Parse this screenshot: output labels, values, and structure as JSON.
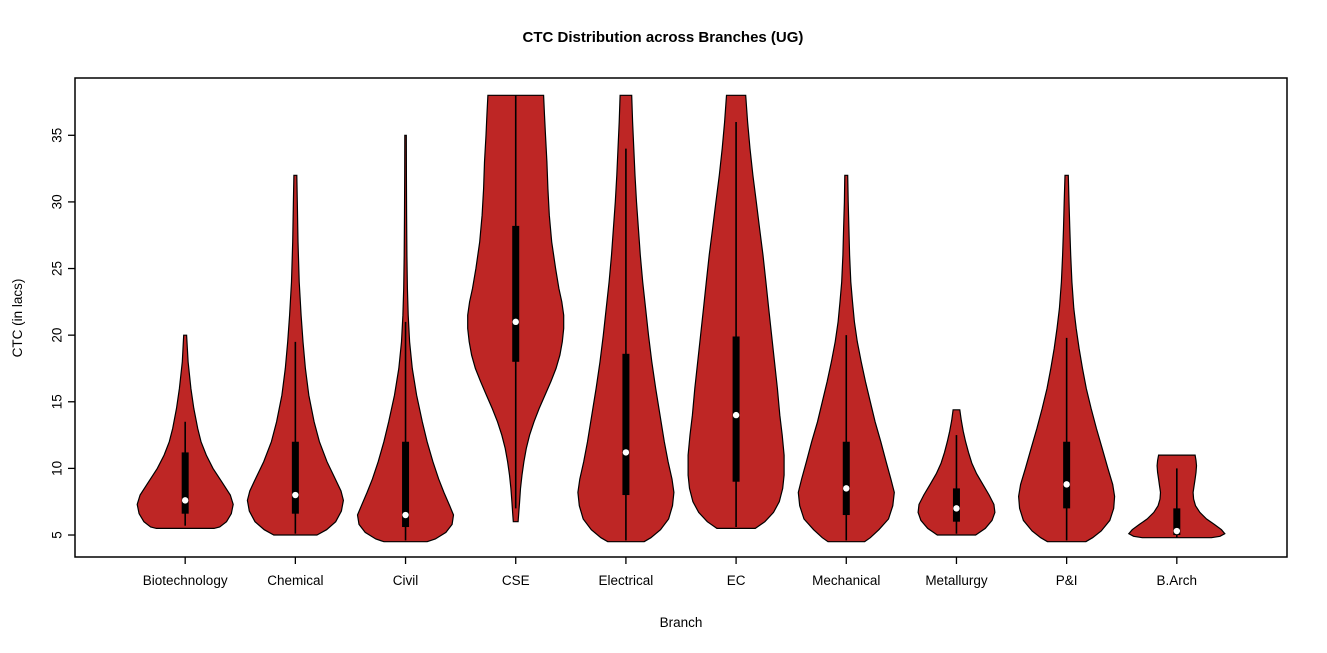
{
  "chart_data": {
    "type": "violin",
    "title": "CTC Distribution across Branches (UG)",
    "xlabel": "Branch",
    "ylabel": "CTC (in lacs)",
    "ylim": [
      3.35,
      39.3
    ],
    "yticks": [
      5,
      10,
      15,
      20,
      25,
      30,
      35
    ],
    "grid": false,
    "legend_position": "none",
    "fill_color": "#BE2625",
    "outline_color": "#000000",
    "box_color": "#000000",
    "median_dot_color": "#FFFFFF",
    "categories": [
      "Biotechnology",
      "Chemical",
      "Civil",
      "CSE",
      "Electrical",
      "EC",
      "Mechanical",
      "Metallurgy",
      "P&I",
      "B.Arch"
    ],
    "violins": [
      {
        "branch": "Biotechnology",
        "min": 5.5,
        "max": 20,
        "q1": 6.6,
        "median": 7.6,
        "q3": 11.2,
        "whisker_low": 5.7,
        "whisker_high": 13.5,
        "profile": [
          [
            20,
            0.03
          ],
          [
            18,
            0.06
          ],
          [
            16,
            0.12
          ],
          [
            14.5,
            0.18
          ],
          [
            13,
            0.26
          ],
          [
            12,
            0.33
          ],
          [
            11,
            0.44
          ],
          [
            10,
            0.58
          ],
          [
            9,
            0.76
          ],
          [
            8,
            0.94
          ],
          [
            7.3,
            1.0
          ],
          [
            6.6,
            0.96
          ],
          [
            6.0,
            0.86
          ],
          [
            5.6,
            0.72
          ],
          [
            5.5,
            0.6
          ]
        ]
      },
      {
        "branch": "Chemical",
        "min": 5.0,
        "max": 32,
        "q1": 6.6,
        "median": 8.0,
        "q3": 12.0,
        "whisker_low": 5.1,
        "whisker_high": 19.5,
        "profile": [
          [
            32,
            0.03
          ],
          [
            30,
            0.04
          ],
          [
            27,
            0.055
          ],
          [
            24,
            0.08
          ],
          [
            21.5,
            0.12
          ],
          [
            19.5,
            0.16
          ],
          [
            17.5,
            0.21
          ],
          [
            15.5,
            0.28
          ],
          [
            13.5,
            0.39
          ],
          [
            12,
            0.5
          ],
          [
            10.5,
            0.66
          ],
          [
            9.3,
            0.82
          ],
          [
            8.3,
            0.95
          ],
          [
            7.6,
            1.0
          ],
          [
            6.8,
            0.96
          ],
          [
            6.0,
            0.84
          ],
          [
            5.4,
            0.65
          ],
          [
            5.0,
            0.45
          ]
        ]
      },
      {
        "branch": "Civil",
        "min": 4.5,
        "max": 35,
        "q1": 5.6,
        "median": 6.5,
        "q3": 12.0,
        "whisker_low": 4.6,
        "whisker_high": 21.0,
        "profile": [
          [
            35,
            0.015
          ],
          [
            32,
            0.018
          ],
          [
            29,
            0.022
          ],
          [
            26,
            0.028
          ],
          [
            23.5,
            0.038
          ],
          [
            21.5,
            0.055
          ],
          [
            19.5,
            0.085
          ],
          [
            17.5,
            0.14
          ],
          [
            15.5,
            0.23
          ],
          [
            13.5,
            0.35
          ],
          [
            12,
            0.45
          ],
          [
            10.5,
            0.57
          ],
          [
            9.2,
            0.69
          ],
          [
            8.2,
            0.8
          ],
          [
            7.2,
            0.92
          ],
          [
            6.5,
            1.0
          ],
          [
            5.8,
            0.97
          ],
          [
            5.2,
            0.84
          ],
          [
            4.7,
            0.62
          ],
          [
            4.5,
            0.45
          ]
        ]
      },
      {
        "branch": "CSE",
        "min": 6.0,
        "max": 38,
        "q1": 18.0,
        "median": 21.0,
        "q3": 28.2,
        "whisker_low": 7.0,
        "whisker_high": 38.0,
        "profile": [
          [
            38,
            0.58
          ],
          [
            36.5,
            0.6
          ],
          [
            35,
            0.62
          ],
          [
            33,
            0.65
          ],
          [
            31,
            0.67
          ],
          [
            29,
            0.7
          ],
          [
            27,
            0.75
          ],
          [
            25,
            0.83
          ],
          [
            23.5,
            0.9
          ],
          [
            22.5,
            0.96
          ],
          [
            21.5,
            1.0
          ],
          [
            20.5,
            1.0
          ],
          [
            19.5,
            0.97
          ],
          [
            18.5,
            0.92
          ],
          [
            17.5,
            0.84
          ],
          [
            16.5,
            0.73
          ],
          [
            15.5,
            0.61
          ],
          [
            14.5,
            0.49
          ],
          [
            13.5,
            0.38
          ],
          [
            12.5,
            0.29
          ],
          [
            11.5,
            0.22
          ],
          [
            10.5,
            0.17
          ],
          [
            9.5,
            0.13
          ],
          [
            8.5,
            0.1
          ],
          [
            7.5,
            0.08
          ],
          [
            6.5,
            0.06
          ],
          [
            6.0,
            0.05
          ]
        ]
      },
      {
        "branch": "Electrical",
        "min": 4.5,
        "max": 38,
        "q1": 8.0,
        "median": 11.2,
        "q3": 18.6,
        "whisker_low": 4.6,
        "whisker_high": 34.0,
        "profile": [
          [
            38,
            0.12
          ],
          [
            36,
            0.14
          ],
          [
            34,
            0.165
          ],
          [
            32,
            0.19
          ],
          [
            30,
            0.22
          ],
          [
            28,
            0.26
          ],
          [
            26,
            0.3
          ],
          [
            24,
            0.35
          ],
          [
            22,
            0.41
          ],
          [
            20,
            0.47
          ],
          [
            18,
            0.54
          ],
          [
            16,
            0.62
          ],
          [
            14,
            0.71
          ],
          [
            12,
            0.8
          ],
          [
            10.5,
            0.88
          ],
          [
            9.2,
            0.96
          ],
          [
            8.2,
            1.0
          ],
          [
            7.2,
            0.97
          ],
          [
            6.2,
            0.89
          ],
          [
            5.4,
            0.72
          ],
          [
            4.8,
            0.52
          ],
          [
            4.5,
            0.38
          ]
        ]
      },
      {
        "branch": "EC",
        "min": 5.5,
        "max": 38,
        "q1": 9.0,
        "median": 14.0,
        "q3": 19.9,
        "whisker_low": 5.6,
        "whisker_high": 36.0,
        "profile": [
          [
            38,
            0.2
          ],
          [
            36,
            0.24
          ],
          [
            34,
            0.29
          ],
          [
            32,
            0.35
          ],
          [
            30,
            0.42
          ],
          [
            28,
            0.49
          ],
          [
            26,
            0.56
          ],
          [
            24,
            0.62
          ],
          [
            22,
            0.68
          ],
          [
            20,
            0.74
          ],
          [
            18,
            0.8
          ],
          [
            16,
            0.86
          ],
          [
            14,
            0.91
          ],
          [
            12.5,
            0.96
          ],
          [
            11,
            1.0
          ],
          [
            9.5,
            1.0
          ],
          [
            8.5,
            0.97
          ],
          [
            7.5,
            0.9
          ],
          [
            6.7,
            0.78
          ],
          [
            6.0,
            0.6
          ],
          [
            5.5,
            0.4
          ]
        ]
      },
      {
        "branch": "Mechanical",
        "min": 4.5,
        "max": 32,
        "q1": 6.5,
        "median": 8.5,
        "q3": 12.0,
        "whisker_low": 4.6,
        "whisker_high": 20.0,
        "profile": [
          [
            32,
            0.03
          ],
          [
            30,
            0.04
          ],
          [
            28,
            0.055
          ],
          [
            26,
            0.07
          ],
          [
            24,
            0.095
          ],
          [
            22.5,
            0.13
          ],
          [
            21,
            0.17
          ],
          [
            19.5,
            0.23
          ],
          [
            18,
            0.31
          ],
          [
            16.5,
            0.4
          ],
          [
            15,
            0.5
          ],
          [
            13.5,
            0.6
          ],
          [
            12,
            0.72
          ],
          [
            10.5,
            0.83
          ],
          [
            9.2,
            0.93
          ],
          [
            8.2,
            1.0
          ],
          [
            7.2,
            0.97
          ],
          [
            6.2,
            0.88
          ],
          [
            5.4,
            0.68
          ],
          [
            4.8,
            0.5
          ],
          [
            4.5,
            0.38
          ]
        ]
      },
      {
        "branch": "Metallurgy",
        "min": 5.0,
        "max": 14.4,
        "q1": 6.0,
        "median": 7.0,
        "q3": 8.5,
        "whisker_low": 5.1,
        "whisker_high": 12.5,
        "profile": [
          [
            14.4,
            0.07
          ],
          [
            13.6,
            0.1
          ],
          [
            12.8,
            0.14
          ],
          [
            12,
            0.19
          ],
          [
            11.2,
            0.25
          ],
          [
            10.4,
            0.32
          ],
          [
            9.6,
            0.42
          ],
          [
            8.8,
            0.55
          ],
          [
            8,
            0.68
          ],
          [
            7.3,
            0.78
          ],
          [
            6.7,
            0.8
          ],
          [
            6.1,
            0.74
          ],
          [
            5.5,
            0.6
          ],
          [
            5.0,
            0.4
          ]
        ]
      },
      {
        "branch": "P&I",
        "min": 4.5,
        "max": 32,
        "q1": 7.0,
        "median": 8.8,
        "q3": 12.0,
        "whisker_low": 4.6,
        "whisker_high": 19.8,
        "profile": [
          [
            32,
            0.035
          ],
          [
            30,
            0.05
          ],
          [
            28,
            0.065
          ],
          [
            26,
            0.085
          ],
          [
            24,
            0.11
          ],
          [
            22,
            0.15
          ],
          [
            20.5,
            0.2
          ],
          [
            19,
            0.26
          ],
          [
            17.5,
            0.33
          ],
          [
            16,
            0.41
          ],
          [
            14.5,
            0.51
          ],
          [
            13,
            0.62
          ],
          [
            11.5,
            0.74
          ],
          [
            10,
            0.86
          ],
          [
            8.8,
            0.96
          ],
          [
            7.9,
            1.0
          ],
          [
            7.0,
            0.98
          ],
          [
            6.1,
            0.9
          ],
          [
            5.3,
            0.72
          ],
          [
            4.8,
            0.54
          ],
          [
            4.5,
            0.4
          ]
        ]
      },
      {
        "branch": "B.Arch",
        "min": 4.8,
        "max": 11,
        "q1": 5.0,
        "median": 5.3,
        "q3": 7.0,
        "whisker_low": 4.8,
        "whisker_high": 10.0,
        "profile": [
          [
            11,
            0.38
          ],
          [
            10.6,
            0.4
          ],
          [
            10.2,
            0.41
          ],
          [
            9.7,
            0.4
          ],
          [
            9.2,
            0.38
          ],
          [
            8.7,
            0.36
          ],
          [
            8.2,
            0.34
          ],
          [
            7.7,
            0.35
          ],
          [
            7.2,
            0.39
          ],
          [
            6.7,
            0.48
          ],
          [
            6.2,
            0.62
          ],
          [
            5.8,
            0.78
          ],
          [
            5.4,
            0.93
          ],
          [
            5.1,
            1.0
          ],
          [
            4.9,
            0.9
          ],
          [
            4.8,
            0.72
          ]
        ]
      }
    ]
  }
}
